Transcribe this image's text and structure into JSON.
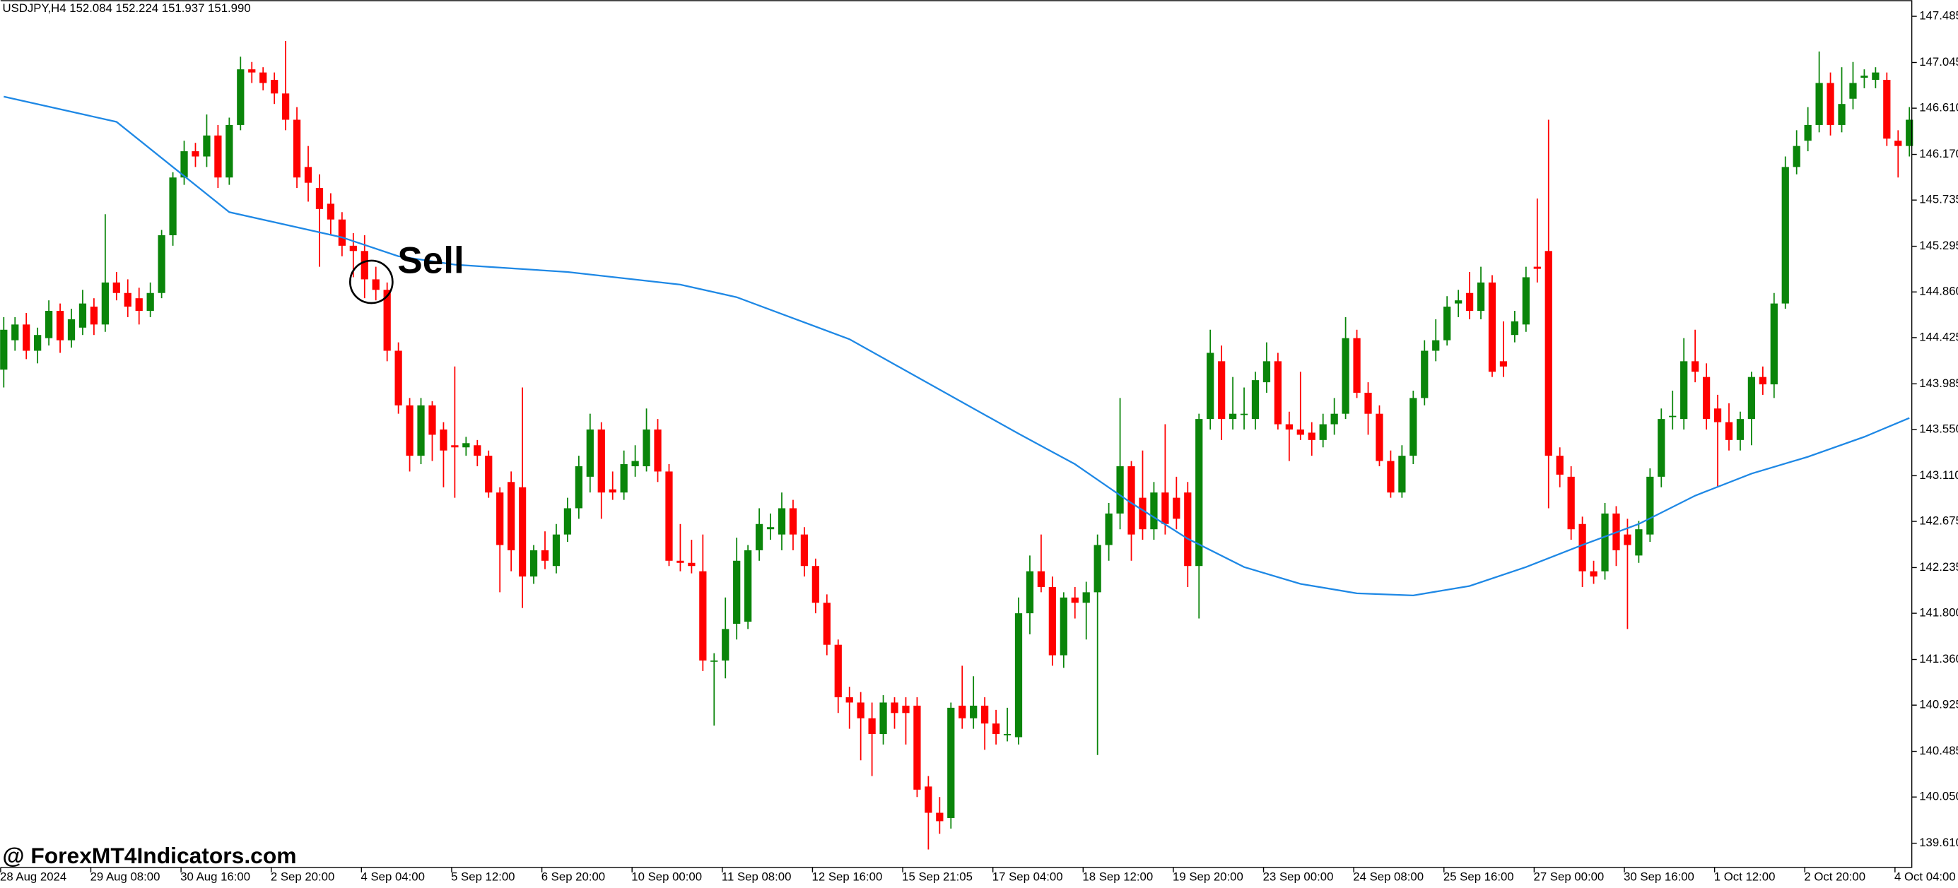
{
  "chart_data": {
    "type": "candlestick",
    "header": "USDJPY,H4  152.084 152.224 151.937 151.990",
    "watermark": "@ ForexMT4Indicators.com",
    "annotation": "Sell",
    "up_color": "#0a850a",
    "down_color": "#ff0000",
    "ylim": [
      139.38,
      147.64
    ],
    "yticks": [
      147.485,
      147.045,
      {
        "value": 146.61,
        "label": "146.610"
      },
      {
        "value": 146.17,
        "label": "146.170"
      },
      145.735,
      145.295,
      {
        "value": 144.86,
        "label": "144.860"
      },
      144.425,
      143.985,
      {
        "value": 143.55,
        "label": "143.550"
      },
      {
        "value": 143.11,
        "label": "143.110"
      },
      142.675,
      142.235,
      {
        "value": 141.8,
        "label": "141.800"
      },
      {
        "value": 141.36,
        "label": "141.360"
      },
      140.925,
      140.485,
      {
        "value": 140.05,
        "label": "140.050"
      },
      {
        "value": 139.61,
        "label": "139.610"
      }
    ],
    "xlabels": [
      "28 Aug 2024",
      "29 Aug 08:00",
      "30 Aug 16:00",
      "2 Sep 20:00",
      "4 Sep 04:00",
      "5 Sep 12:00",
      "6 Sep 20:00",
      "10 Sep 00:00",
      "11 Sep 08:00",
      "12 Sep 16:00",
      "15 Sep 21:05",
      "17 Sep 04:00",
      "18 Sep 12:00",
      "19 Sep 20:00",
      "23 Sep 00:00",
      "24 Sep 08:00",
      "25 Sep 16:00",
      "27 Sep 00:00",
      "30 Sep 16:00",
      "1 Oct 12:00",
      "2 Oct 20:00",
      "4 Oct 04:00"
    ],
    "ohlc": [
      [
        144.12,
        144.62,
        143.95,
        144.5
      ],
      [
        144.4,
        144.62,
        144.3,
        144.55
      ],
      [
        144.55,
        144.66,
        144.22,
        144.3
      ],
      [
        144.3,
        144.52,
        144.18,
        144.45
      ],
      [
        144.42,
        144.78,
        144.35,
        144.68
      ],
      [
        144.68,
        144.75,
        144.28,
        144.4
      ],
      [
        144.4,
        144.7,
        144.33,
        144.6
      ],
      [
        144.52,
        144.88,
        144.45,
        144.75
      ],
      [
        144.72,
        144.8,
        144.45,
        144.55
      ],
      [
        144.55,
        145.6,
        144.48,
        144.95
      ],
      [
        144.95,
        145.05,
        144.78,
        144.85
      ],
      [
        144.85,
        144.98,
        144.62,
        144.72
      ],
      [
        144.8,
        144.9,
        144.55,
        144.68
      ],
      [
        144.68,
        144.95,
        144.62,
        144.85
      ],
      [
        144.85,
        145.45,
        144.8,
        145.4
      ],
      [
        145.4,
        146.0,
        145.3,
        145.95
      ],
      [
        145.95,
        146.3,
        145.88,
        146.2
      ],
      [
        146.2,
        146.28,
        146.05,
        146.15
      ],
      [
        146.15,
        146.55,
        146.05,
        146.35
      ],
      [
        146.35,
        146.45,
        145.85,
        145.95
      ],
      [
        145.95,
        146.52,
        145.88,
        146.45
      ],
      [
        146.45,
        147.1,
        146.4,
        146.98
      ],
      [
        146.98,
        147.05,
        146.85,
        146.95
      ],
      [
        146.95,
        147.0,
        146.78,
        146.85
      ],
      [
        146.88,
        146.95,
        146.65,
        146.75
      ],
      [
        146.75,
        147.25,
        146.4,
        146.5
      ],
      [
        146.5,
        146.62,
        145.85,
        145.95
      ],
      [
        146.05,
        146.25,
        145.72,
        145.9
      ],
      [
        145.85,
        145.98,
        145.1,
        145.65
      ],
      [
        145.7,
        145.8,
        145.4,
        145.55
      ],
      [
        145.55,
        145.62,
        145.2,
        145.3
      ],
      [
        145.3,
        145.42,
        145.0,
        145.25
      ],
      [
        145.25,
        145.4,
        144.8,
        144.98
      ],
      [
        144.98,
        145.1,
        144.78,
        144.88
      ],
      [
        144.88,
        144.95,
        144.2,
        144.3
      ],
      [
        144.3,
        144.38,
        143.7,
        143.78
      ],
      [
        143.78,
        143.85,
        143.15,
        143.3
      ],
      [
        143.3,
        143.85,
        143.22,
        143.78
      ],
      [
        143.78,
        143.82,
        143.25,
        143.5
      ],
      [
        143.55,
        143.62,
        143.0,
        143.35
      ],
      [
        143.4,
        144.15,
        142.9,
        143.38
      ],
      [
        143.38,
        143.48,
        143.3,
        143.42
      ],
      [
        143.4,
        143.45,
        143.2,
        143.3
      ],
      [
        143.3,
        143.35,
        142.9,
        142.95
      ],
      [
        142.95,
        143.0,
        142.0,
        142.45
      ],
      [
        143.05,
        143.15,
        142.2,
        142.4
      ],
      [
        143.0,
        143.95,
        141.85,
        142.15
      ],
      [
        142.15,
        142.45,
        142.08,
        142.4
      ],
      [
        142.4,
        142.58,
        142.22,
        142.3
      ],
      [
        142.25,
        142.65,
        142.18,
        142.55
      ],
      [
        142.55,
        142.9,
        142.48,
        142.8
      ],
      [
        142.8,
        143.3,
        142.7,
        143.2
      ],
      [
        143.1,
        143.7,
        142.95,
        143.55
      ],
      [
        143.55,
        143.62,
        142.7,
        142.95
      ],
      [
        142.98,
        143.15,
        142.88,
        142.95
      ],
      [
        142.95,
        143.35,
        142.88,
        143.22
      ],
      [
        143.2,
        143.4,
        143.1,
        143.25
      ],
      [
        143.2,
        143.75,
        143.15,
        143.55
      ],
      [
        143.55,
        143.65,
        143.05,
        143.15
      ],
      [
        143.15,
        143.22,
        142.25,
        142.3
      ],
      [
        142.3,
        142.65,
        142.2,
        142.28
      ],
      [
        142.28,
        142.5,
        142.18,
        142.25
      ],
      [
        142.2,
        142.55,
        141.25,
        141.35
      ],
      [
        141.35,
        141.42,
        140.73,
        141.35
      ],
      [
        141.35,
        141.95,
        141.18,
        141.65
      ],
      [
        141.7,
        142.52,
        141.55,
        142.3
      ],
      [
        141.72,
        142.45,
        141.65,
        142.4
      ],
      [
        142.4,
        142.8,
        142.3,
        142.65
      ],
      [
        142.6,
        142.75,
        142.5,
        142.62
      ],
      [
        142.55,
        142.95,
        142.4,
        142.8
      ],
      [
        142.8,
        142.88,
        142.4,
        142.55
      ],
      [
        142.55,
        142.62,
        142.15,
        142.25
      ],
      [
        142.25,
        142.32,
        141.8,
        141.9
      ],
      [
        141.9,
        141.98,
        141.4,
        141.5
      ],
      [
        141.5,
        141.55,
        140.85,
        141.0
      ],
      [
        141.0,
        141.1,
        140.7,
        140.95
      ],
      [
        140.95,
        141.05,
        140.4,
        140.8
      ],
      [
        140.8,
        140.95,
        140.25,
        140.65
      ],
      [
        140.65,
        141.02,
        140.55,
        140.95
      ],
      [
        140.95,
        141.0,
        140.7,
        140.85
      ],
      [
        140.92,
        141.0,
        140.55,
        140.85
      ],
      [
        140.92,
        141.0,
        140.05,
        140.12
      ],
      [
        140.15,
        140.25,
        139.55,
        139.9
      ],
      [
        139.9,
        140.05,
        139.7,
        139.82
      ],
      [
        139.85,
        140.95,
        139.75,
        140.9
      ],
      [
        140.92,
        141.3,
        140.7,
        140.8
      ],
      [
        140.8,
        141.2,
        140.7,
        140.92
      ],
      [
        140.92,
        141.0,
        140.5,
        140.75
      ],
      [
        140.75,
        140.88,
        140.55,
        140.65
      ],
      [
        140.65,
        140.9,
        140.58,
        140.65
      ],
      [
        140.62,
        141.95,
        140.55,
        141.8
      ],
      [
        141.8,
        142.35,
        141.6,
        142.2
      ],
      [
        142.2,
        142.55,
        142.0,
        142.05
      ],
      [
        142.05,
        142.15,
        141.3,
        141.4
      ],
      [
        141.4,
        142.0,
        141.28,
        141.95
      ],
      [
        141.95,
        142.05,
        141.75,
        141.9
      ],
      [
        141.9,
        142.1,
        141.55,
        142.0
      ],
      [
        142.0,
        142.55,
        140.45,
        142.45
      ],
      [
        142.45,
        142.85,
        142.3,
        142.75
      ],
      [
        142.75,
        143.85,
        142.6,
        143.2
      ],
      [
        143.2,
        143.25,
        142.3,
        142.55
      ],
      [
        142.9,
        143.35,
        142.5,
        142.6
      ],
      [
        142.6,
        143.05,
        142.5,
        142.95
      ],
      [
        142.95,
        143.6,
        142.55,
        142.65
      ],
      [
        142.9,
        143.1,
        142.6,
        142.7
      ],
      [
        142.95,
        143.05,
        142.05,
        142.25
      ],
      [
        142.25,
        143.7,
        141.75,
        143.65
      ],
      [
        143.65,
        144.5,
        143.55,
        144.28
      ],
      [
        144.2,
        144.35,
        143.45,
        143.65
      ],
      [
        143.65,
        144.05,
        143.55,
        143.7
      ],
      [
        143.7,
        143.95,
        143.55,
        143.7
      ],
      [
        143.65,
        144.1,
        143.55,
        144.02
      ],
      [
        144.0,
        144.38,
        143.9,
        144.2
      ],
      [
        144.2,
        144.28,
        143.55,
        143.6
      ],
      [
        143.6,
        143.72,
        143.25,
        143.55
      ],
      [
        143.55,
        144.1,
        143.45,
        143.5
      ],
      [
        143.52,
        143.62,
        143.3,
        143.45
      ],
      [
        143.45,
        143.7,
        143.38,
        143.6
      ],
      [
        143.6,
        143.85,
        143.5,
        143.7
      ],
      [
        143.7,
        144.62,
        143.65,
        144.42
      ],
      [
        144.42,
        144.5,
        143.85,
        143.9
      ],
      [
        143.9,
        144.0,
        143.5,
        143.7
      ],
      [
        143.7,
        143.78,
        143.2,
        143.25
      ],
      [
        143.25,
        143.35,
        142.9,
        142.95
      ],
      [
        142.95,
        143.4,
        142.9,
        143.3
      ],
      [
        143.3,
        143.92,
        143.22,
        143.85
      ],
      [
        143.85,
        144.4,
        143.78,
        144.3
      ],
      [
        144.3,
        144.6,
        144.2,
        144.4
      ],
      [
        144.4,
        144.82,
        144.35,
        144.72
      ],
      [
        144.75,
        144.88,
        144.62,
        144.78
      ],
      [
        144.85,
        145.05,
        144.6,
        144.68
      ],
      [
        144.68,
        145.1,
        144.6,
        144.95
      ],
      [
        144.95,
        145.02,
        144.05,
        144.1
      ],
      [
        144.2,
        144.58,
        144.05,
        144.15
      ],
      [
        144.45,
        144.68,
        144.38,
        144.58
      ],
      [
        144.55,
        145.1,
        144.48,
        145.0
      ],
      [
        145.1,
        145.75,
        144.95,
        145.08
      ],
      [
        145.25,
        146.5,
        142.8,
        143.3
      ],
      [
        143.3,
        143.38,
        143.0,
        143.12
      ],
      [
        143.1,
        143.2,
        142.5,
        142.6
      ],
      [
        142.65,
        142.72,
        142.05,
        142.2
      ],
      [
        142.2,
        142.3,
        142.08,
        142.15
      ],
      [
        142.2,
        142.85,
        142.12,
        142.75
      ],
      [
        142.75,
        142.82,
        142.25,
        142.4
      ],
      [
        142.55,
        142.7,
        141.65,
        142.45
      ],
      [
        142.35,
        142.68,
        142.28,
        142.6
      ],
      [
        142.55,
        143.18,
        142.48,
        143.1
      ],
      [
        143.1,
        143.75,
        143.0,
        143.65
      ],
      [
        143.68,
        143.92,
        143.55,
        143.68
      ],
      [
        143.65,
        144.42,
        143.55,
        144.2
      ],
      [
        144.2,
        144.5,
        144.0,
        144.1
      ],
      [
        144.05,
        144.18,
        143.55,
        143.65
      ],
      [
        143.75,
        143.88,
        143.0,
        143.62
      ],
      [
        143.62,
        143.8,
        143.35,
        143.45
      ],
      [
        143.45,
        143.72,
        143.35,
        143.65
      ],
      [
        143.65,
        144.1,
        143.4,
        144.05
      ],
      [
        144.05,
        144.15,
        143.88,
        143.98
      ],
      [
        143.98,
        144.85,
        143.85,
        144.75
      ],
      [
        144.75,
        146.15,
        144.7,
        146.05
      ],
      [
        146.05,
        146.4,
        145.98,
        146.25
      ],
      [
        146.3,
        146.62,
        146.2,
        146.45
      ],
      [
        146.45,
        147.15,
        146.38,
        146.85
      ],
      [
        146.85,
        146.95,
        146.35,
        146.45
      ],
      [
        146.45,
        147.0,
        146.38,
        146.65
      ],
      [
        146.7,
        147.05,
        146.6,
        146.85
      ],
      [
        146.9,
        146.98,
        146.8,
        146.92
      ],
      [
        146.88,
        147.0,
        146.8,
        146.95
      ],
      [
        146.88,
        146.95,
        146.25,
        146.32
      ],
      [
        146.3,
        146.4,
        145.95,
        146.25
      ],
      [
        146.25,
        146.62,
        146.15,
        146.5
      ]
    ],
    "ma": {
      "color": "#1e88e5",
      "x": [
        0,
        10,
        20,
        30,
        35,
        40,
        50,
        60,
        65,
        70,
        75,
        80,
        85,
        90,
        95,
        100,
        105,
        110,
        115,
        120,
        125,
        130,
        135,
        140,
        145,
        150,
        155,
        160,
        165,
        169
      ],
      "values": [
        146.72,
        146.48,
        145.62,
        145.38,
        145.2,
        145.12,
        145.05,
        144.93,
        144.81,
        144.61,
        144.41,
        144.11,
        143.81,
        143.51,
        143.22,
        142.85,
        142.51,
        142.24,
        142.08,
        141.99,
        141.97,
        142.06,
        142.24,
        142.45,
        142.65,
        142.92,
        143.13,
        143.29,
        143.48,
        143.66
      ]
    }
  }
}
